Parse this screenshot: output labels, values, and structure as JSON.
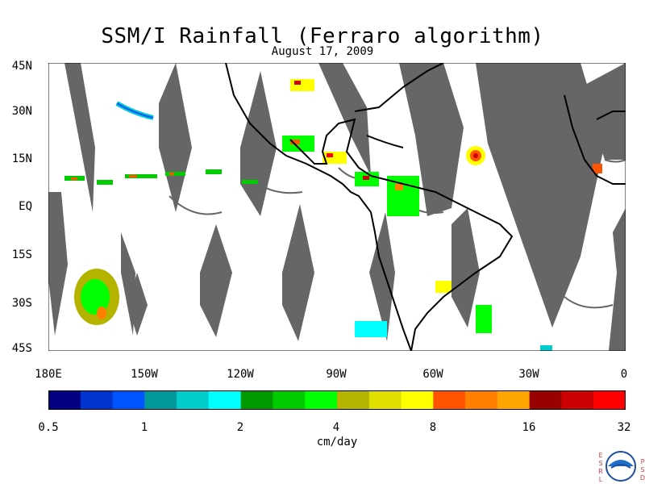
{
  "title": "SSM/I Rainfall (Ferraro algorithm)",
  "date": "August 17, 2009",
  "map": {
    "lat_labels": [
      "45N",
      "30N",
      "15N",
      "EQ",
      "15S",
      "30S",
      "45S"
    ],
    "lon_labels": [
      "180E",
      "150W",
      "120W",
      "90W",
      "60W",
      "30W",
      "0"
    ],
    "extent": {
      "lon": [
        -180,
        0
      ],
      "lat": [
        -45,
        45
      ]
    },
    "missing_color": "#666666",
    "coast_color": "#000000"
  },
  "colorbar": {
    "tick_labels": [
      "0.5",
      "1",
      "2",
      "4",
      "8",
      "16",
      "32"
    ],
    "units": "cm/day",
    "colors": [
      "#000080",
      "#0033cc",
      "#0055ff",
      "#009999",
      "#00cccc",
      "#00ffff",
      "#009900",
      "#00cc00",
      "#00ff00",
      "#b3b300",
      "#e0e000",
      "#ffff00",
      "#ff5500",
      "#ff8000",
      "#ffa500",
      "#990000",
      "#cc0000",
      "#ff0000"
    ]
  },
  "logo": {
    "left_text": "ESRL",
    "right_text": "PSD",
    "seal_text": "NOAA"
  }
}
